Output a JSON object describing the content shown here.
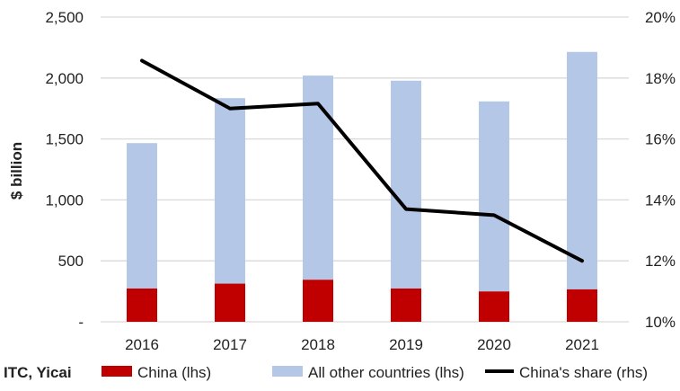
{
  "chart_data": {
    "type": "bar",
    "stacked": true,
    "categories": [
      "2016",
      "2017",
      "2018",
      "2019",
      "2020",
      "2021"
    ],
    "series": [
      {
        "name": "China (lhs)",
        "type": "bar",
        "axis": "left",
        "color": "#c00000",
        "values": [
          273,
          313,
          345,
          273,
          249,
          266
        ]
      },
      {
        "name": "All other countries (lhs)",
        "type": "bar",
        "axis": "left",
        "color": "#b4c7e7",
        "values": [
          1193,
          1522,
          1675,
          1705,
          1559,
          1948
        ]
      },
      {
        "name": "China's share (rhs)",
        "type": "line",
        "axis": "right",
        "color": "#000000",
        "values": [
          18.57,
          17.0,
          17.16,
          13.7,
          13.5,
          12.0
        ]
      }
    ],
    "ylabel": "$ billion",
    "ylim": [
      0,
      2500
    ],
    "yticks": [
      0,
      500,
      1000,
      1500,
      2000,
      2500
    ],
    "ytick_labels": [
      "-",
      "500",
      "1,000",
      "1,500",
      "2,000",
      "2,500"
    ],
    "y2lim": [
      10,
      20
    ],
    "y2ticks": [
      10,
      12,
      14,
      16,
      18,
      20
    ],
    "y2tick_labels": [
      "10%",
      "12%",
      "14%",
      "16%",
      "18%",
      "20%"
    ],
    "grid": true,
    "legend_position": "bottom",
    "source": "ITC, Yicai"
  }
}
